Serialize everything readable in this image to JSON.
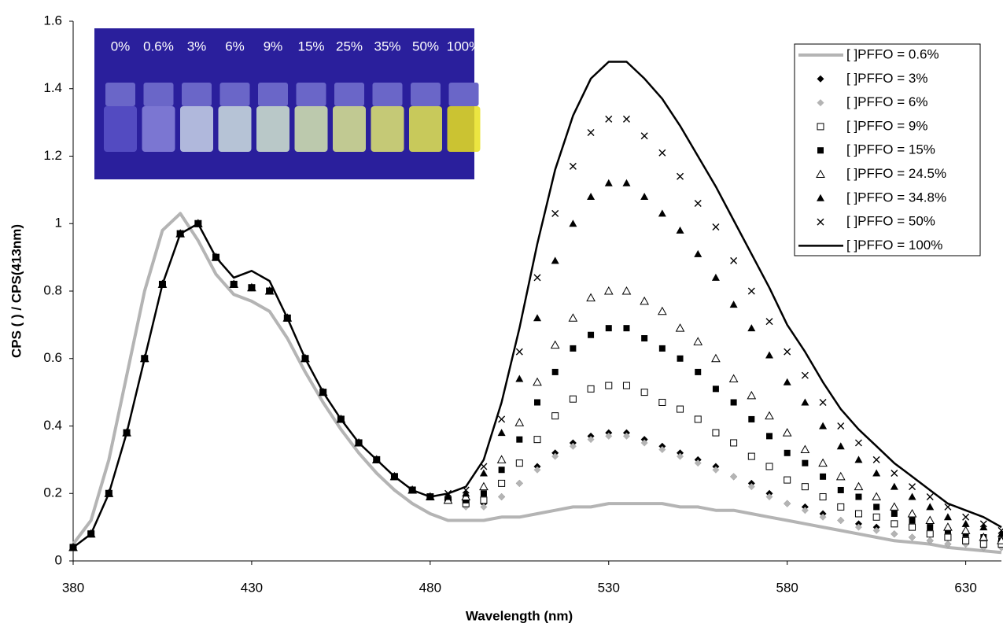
{
  "chart_data": {
    "type": "line",
    "xlabel": "Wavelength (nm)",
    "ylabel": "CPS ( ) / CPS(413nm)",
    "xlim": [
      380,
      640
    ],
    "xticks": [
      380,
      430,
      480,
      530,
      580,
      630
    ],
    "ylim": [
      0,
      1.6
    ],
    "yticks": [
      0,
      0.2,
      0.4,
      0.6,
      0.8,
      1,
      1.2,
      1.4,
      1.6
    ],
    "legend": "upper-right",
    "inset_labels": [
      "0%",
      "0.6%",
      "3%",
      "6%",
      "9%",
      "15%",
      "25%",
      "35%",
      "50%",
      "100%"
    ],
    "x": [
      380,
      385,
      390,
      395,
      400,
      405,
      410,
      415,
      420,
      425,
      430,
      435,
      440,
      445,
      450,
      455,
      460,
      465,
      470,
      475,
      480,
      485,
      490,
      495,
      500,
      505,
      510,
      515,
      520,
      525,
      530,
      535,
      540,
      545,
      550,
      555,
      560,
      565,
      570,
      575,
      580,
      585,
      590,
      595,
      600,
      605,
      610,
      615,
      620,
      625,
      630,
      635,
      640
    ],
    "series": [
      {
        "name": "[ ]PFFO = 0.6%",
        "marker": "line",
        "color": "#b4b4b4",
        "values": [
          0.05,
          0.12,
          0.3,
          0.55,
          0.8,
          0.98,
          1.03,
          0.95,
          0.85,
          0.79,
          0.77,
          0.74,
          0.66,
          0.56,
          0.47,
          0.39,
          0.32,
          0.26,
          0.21,
          0.17,
          0.14,
          0.12,
          0.12,
          0.12,
          0.13,
          0.13,
          0.14,
          0.15,
          0.16,
          0.16,
          0.17,
          0.17,
          0.17,
          0.17,
          0.16,
          0.16,
          0.15,
          0.15,
          0.14,
          0.13,
          0.12,
          0.11,
          0.1,
          0.09,
          0.08,
          0.07,
          0.06,
          0.055,
          0.05,
          0.04,
          0.035,
          0.03,
          0.025
        ]
      },
      {
        "name": "[ ]PFFO = 3%",
        "marker": "diamond",
        "color": "#000000",
        "values": [
          0.04,
          0.08,
          0.2,
          0.38,
          0.6,
          0.82,
          0.97,
          1.0,
          0.9,
          0.82,
          0.81,
          0.8,
          0.72,
          0.6,
          0.5,
          0.42,
          0.35,
          0.3,
          0.25,
          0.21,
          0.19,
          0.18,
          0.17,
          0.17,
          0.19,
          0.23,
          0.28,
          0.32,
          0.35,
          0.37,
          0.38,
          0.38,
          0.36,
          0.34,
          0.32,
          0.3,
          0.28,
          0.25,
          0.23,
          0.2,
          0.17,
          0.16,
          0.14,
          0.12,
          0.11,
          0.1,
          0.08,
          0.07,
          0.06,
          0.05,
          0.05,
          0.04,
          0.04
        ]
      },
      {
        "name": "[ ]PFFO = 6%",
        "marker": "diamond",
        "color": "#b4b4b4",
        "values": [
          0.04,
          0.08,
          0.2,
          0.38,
          0.6,
          0.82,
          0.97,
          1.0,
          0.9,
          0.82,
          0.81,
          0.8,
          0.72,
          0.6,
          0.5,
          0.42,
          0.35,
          0.3,
          0.25,
          0.21,
          0.19,
          0.18,
          0.16,
          0.16,
          0.19,
          0.23,
          0.27,
          0.31,
          0.34,
          0.36,
          0.37,
          0.37,
          0.35,
          0.33,
          0.31,
          0.29,
          0.27,
          0.25,
          0.22,
          0.19,
          0.17,
          0.15,
          0.13,
          0.12,
          0.1,
          0.09,
          0.08,
          0.07,
          0.06,
          0.05,
          0.05,
          0.04,
          0.04
        ]
      },
      {
        "name": "[ ]PFFO = 9%",
        "marker": "square-open",
        "color": "#000000",
        "values": [
          0.04,
          0.08,
          0.2,
          0.38,
          0.6,
          0.82,
          0.97,
          1.0,
          0.9,
          0.82,
          0.81,
          0.8,
          0.72,
          0.6,
          0.5,
          0.42,
          0.35,
          0.3,
          0.25,
          0.21,
          0.19,
          0.18,
          0.17,
          0.18,
          0.23,
          0.29,
          0.36,
          0.43,
          0.48,
          0.51,
          0.52,
          0.52,
          0.5,
          0.47,
          0.45,
          0.42,
          0.38,
          0.35,
          0.31,
          0.28,
          0.24,
          0.22,
          0.19,
          0.16,
          0.14,
          0.13,
          0.11,
          0.1,
          0.08,
          0.07,
          0.06,
          0.05,
          0.05
        ]
      },
      {
        "name": "[ ]PFFO = 15%",
        "marker": "square",
        "color": "#000000",
        "values": [
          0.04,
          0.08,
          0.2,
          0.38,
          0.6,
          0.82,
          0.97,
          1.0,
          0.9,
          0.82,
          0.81,
          0.8,
          0.72,
          0.6,
          0.5,
          0.42,
          0.35,
          0.3,
          0.25,
          0.21,
          0.19,
          0.18,
          0.18,
          0.2,
          0.27,
          0.36,
          0.47,
          0.56,
          0.63,
          0.67,
          0.69,
          0.69,
          0.66,
          0.63,
          0.6,
          0.56,
          0.51,
          0.47,
          0.42,
          0.37,
          0.32,
          0.29,
          0.25,
          0.21,
          0.19,
          0.16,
          0.14,
          0.12,
          0.1,
          0.09,
          0.08,
          0.07,
          0.06
        ]
      },
      {
        "name": "[ ]PFFO = 24.5%",
        "marker": "triangle-open",
        "color": "#000000",
        "values": [
          0.04,
          0.08,
          0.2,
          0.38,
          0.6,
          0.82,
          0.97,
          1.0,
          0.9,
          0.82,
          0.81,
          0.8,
          0.72,
          0.6,
          0.5,
          0.42,
          0.35,
          0.3,
          0.25,
          0.21,
          0.19,
          0.18,
          0.19,
          0.22,
          0.3,
          0.41,
          0.53,
          0.64,
          0.72,
          0.78,
          0.8,
          0.8,
          0.77,
          0.74,
          0.69,
          0.65,
          0.6,
          0.54,
          0.49,
          0.43,
          0.38,
          0.33,
          0.29,
          0.25,
          0.22,
          0.19,
          0.16,
          0.14,
          0.12,
          0.1,
          0.09,
          0.07,
          0.06
        ]
      },
      {
        "name": "[ ]PFFO = 34.8%",
        "marker": "triangle",
        "color": "#000000",
        "values": [
          0.04,
          0.08,
          0.2,
          0.38,
          0.6,
          0.82,
          0.97,
          1.0,
          0.9,
          0.82,
          0.81,
          0.8,
          0.72,
          0.6,
          0.5,
          0.42,
          0.35,
          0.3,
          0.25,
          0.21,
          0.19,
          0.19,
          0.2,
          0.26,
          0.38,
          0.54,
          0.72,
          0.89,
          1.0,
          1.08,
          1.12,
          1.12,
          1.08,
          1.03,
          0.98,
          0.91,
          0.84,
          0.76,
          0.69,
          0.61,
          0.53,
          0.47,
          0.4,
          0.34,
          0.3,
          0.26,
          0.22,
          0.19,
          0.16,
          0.13,
          0.11,
          0.1,
          0.08
        ]
      },
      {
        "name": "[ ]PFFO = 50%",
        "marker": "cross",
        "color": "#000000",
        "values": [
          0.04,
          0.08,
          0.2,
          0.38,
          0.6,
          0.82,
          0.97,
          1.0,
          0.9,
          0.82,
          0.81,
          0.8,
          0.72,
          0.6,
          0.5,
          0.42,
          0.35,
          0.3,
          0.25,
          0.21,
          0.19,
          0.2,
          0.21,
          0.28,
          0.42,
          0.62,
          0.84,
          1.03,
          1.17,
          1.27,
          1.31,
          1.31,
          1.26,
          1.21,
          1.14,
          1.06,
          0.99,
          0.89,
          0.8,
          0.71,
          0.62,
          0.55,
          0.47,
          0.4,
          0.35,
          0.3,
          0.26,
          0.22,
          0.19,
          0.16,
          0.13,
          0.11,
          0.09
        ]
      },
      {
        "name": "[ ]PFFO = 100%",
        "marker": "line",
        "color": "#000000",
        "values": [
          0.04,
          0.08,
          0.2,
          0.38,
          0.6,
          0.82,
          0.97,
          1.0,
          0.9,
          0.84,
          0.86,
          0.83,
          0.72,
          0.6,
          0.5,
          0.42,
          0.35,
          0.3,
          0.25,
          0.21,
          0.19,
          0.2,
          0.22,
          0.3,
          0.47,
          0.69,
          0.94,
          1.16,
          1.32,
          1.43,
          1.48,
          1.48,
          1.43,
          1.37,
          1.29,
          1.2,
          1.11,
          1.01,
          0.91,
          0.81,
          0.7,
          0.62,
          0.53,
          0.45,
          0.39,
          0.34,
          0.29,
          0.25,
          0.21,
          0.17,
          0.15,
          0.13,
          0.1
        ]
      }
    ]
  }
}
